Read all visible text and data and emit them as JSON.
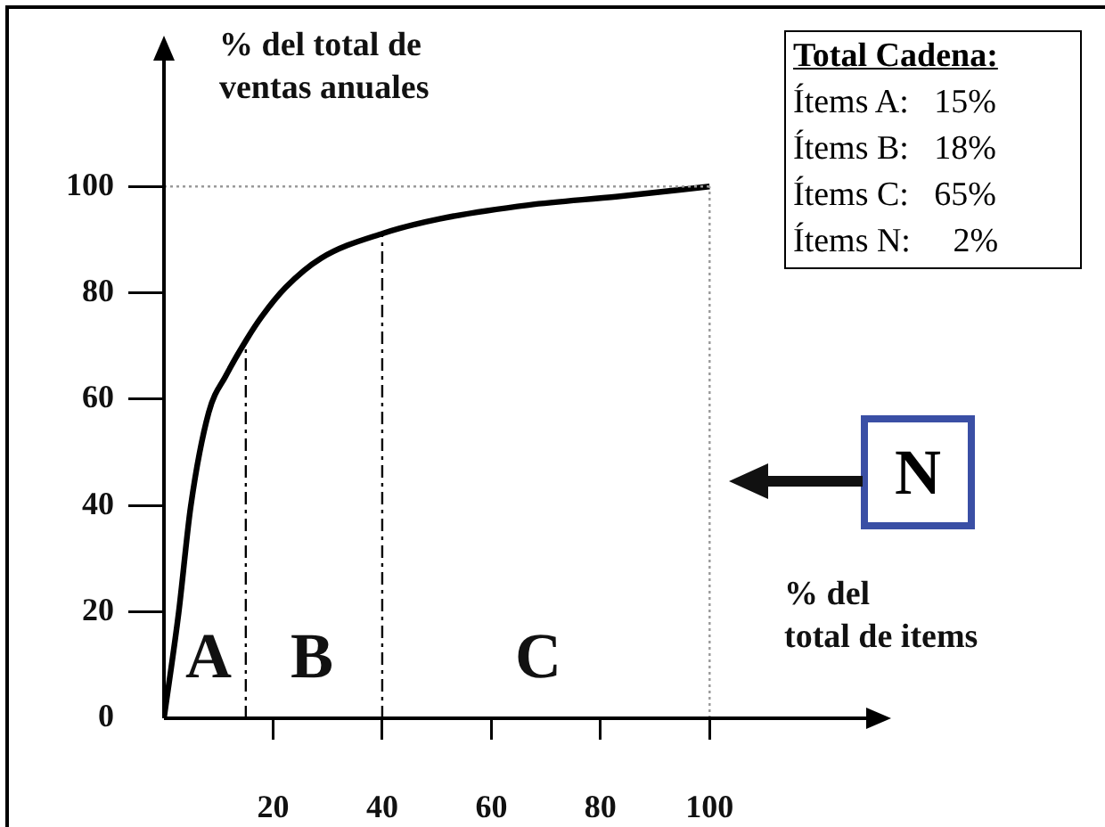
{
  "chart_data": {
    "type": "line",
    "xlabel": "% del\ntotal de items",
    "ylabel": "% del total de\nventas anuales",
    "x": [
      0,
      2.7,
      4.9,
      8.2,
      11.4,
      15.2,
      17.9,
      22.3,
      28.8,
      40.2,
      50.5,
      66.8,
      83.2,
      100
    ],
    "series": [
      {
        "color": "#000000",
        "values": [
          0,
          19.9,
          39.8,
          57.5,
          64.5,
          71.3,
          75.5,
          81,
          86.5,
          91.2,
          93.9,
          96.5,
          98.1,
          100
        ]
      }
    ],
    "xlim": [
      0,
      130
    ],
    "ylim": [
      0,
      125
    ],
    "xticks": [
      20,
      40,
      60,
      80,
      100
    ],
    "yticks": [
      0,
      20,
      40,
      60,
      80,
      100
    ],
    "ref_lines": [
      {
        "axis": "x",
        "value": 15,
        "line_style": "dashed",
        "color": "#000000"
      },
      {
        "axis": "x",
        "value": 40,
        "line_style": "dashed",
        "color": "#000000"
      },
      {
        "axis": "y",
        "value": 100,
        "line_style": "dotted",
        "color": "#999999"
      },
      {
        "axis": "x",
        "value": 100,
        "line_style": "dotted",
        "color": "#999999"
      }
    ],
    "annotations": [
      "A",
      "B",
      "C",
      "Total Cadena:",
      "Ítems A:   15%",
      "Ítems B:   18%",
      "Ítems C:   65%",
      "Ítems N:     2%",
      "N"
    ],
    "legend": false,
    "grid": false,
    "marker": "none",
    "line_style": "solid"
  }
}
